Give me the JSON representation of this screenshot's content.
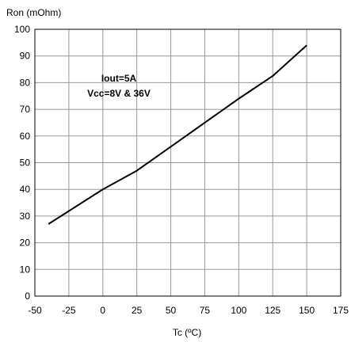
{
  "chart_data": {
    "type": "line",
    "title": "",
    "xlabel": "Tc (ºC)",
    "ylabel": "Ron (mOhm)",
    "xlim": [
      -50,
      175
    ],
    "ylim": [
      0,
      100
    ],
    "x_ticks": [
      -50,
      -25,
      0,
      25,
      50,
      75,
      100,
      125,
      150,
      175
    ],
    "y_ticks": [
      0,
      10,
      20,
      30,
      40,
      50,
      60,
      70,
      80,
      90,
      100
    ],
    "grid": true,
    "series": [
      {
        "x": [
          -40,
          0,
          25,
          50,
          75,
          100,
          125,
          150
        ],
        "y": [
          27,
          40,
          47,
          56,
          65,
          74,
          82.5,
          94
        ],
        "color": "#000000"
      }
    ],
    "annotations": [
      "Iout=5A",
      "Vcc=8V & 36V"
    ]
  }
}
